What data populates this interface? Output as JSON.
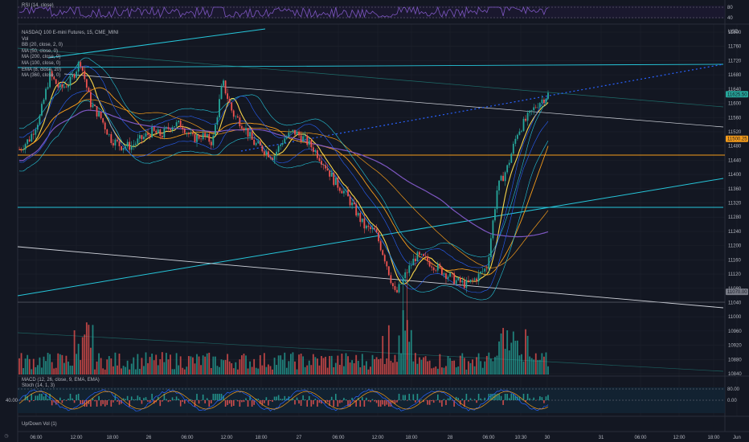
{
  "chart_data": [
    {
      "type": "candlestick",
      "title": "NASDAQ 100 E-mini Futures, 15, CME_MINI",
      "currency": "USD",
      "indicators": [
        "Vol",
        "BB (20, close, 2, 0)",
        "MA (50, close, 0)",
        "MA (200, close, 0)",
        "MA (100, close, 0)",
        "EMA (8, close, 20)",
        "MA (360, close, 0)"
      ],
      "y_ticks": [
        11800,
        11760,
        11720,
        11680,
        11640,
        11600,
        11560,
        11520,
        11480,
        11440,
        11400,
        11360,
        11320,
        11280,
        11240,
        11200,
        11160,
        11120,
        11080,
        11040,
        11000,
        10960,
        10920,
        10880,
        10840
      ],
      "ylim": [
        10840,
        11820
      ],
      "x_ticks": [
        "06:00",
        "12:00",
        "18:00",
        "26",
        "06:00",
        "12:00",
        "18:00",
        "27",
        "06:00",
        "12:00",
        "18:00",
        "28",
        "06:00",
        "10:30",
        "30",
        "31",
        "06:00",
        "12:00",
        "18:00",
        "Jun"
      ],
      "price_tags": [
        {
          "value": "11625.50",
          "color": "#26a69a"
        },
        {
          "value": "11500.25",
          "color": "#f59c1a"
        },
        {
          "value": "11070.00",
          "color": "#787b86"
        }
      ],
      "price_path": [
        11470,
        11500,
        11560,
        11680,
        11640,
        11660,
        11720,
        11600,
        11560,
        11500,
        11480,
        11480,
        11500,
        11520,
        11510,
        11540,
        11540,
        11500,
        11510,
        11490,
        11660,
        11570,
        11540,
        11490,
        11470,
        11450,
        11500,
        11520,
        11500,
        11470,
        11430,
        11380,
        11350,
        11300,
        11250,
        11240,
        11160,
        11060,
        11120,
        11170,
        11160,
        11140,
        11120,
        11100,
        11090,
        11110,
        11140,
        11360,
        11420,
        11520,
        11560,
        11600,
        11625
      ]
    },
    {
      "type": "line",
      "title": "RSI (14, close)",
      "y_ticks": [
        80.0,
        40.0
      ]
    },
    {
      "type": "line",
      "title": "MACD (12, 26, close, 9, EMA, EMA)",
      "indicators": [
        "Stoch (14, 1, 3)"
      ],
      "y_ticks": [
        "80.00",
        "40.00",
        "0.00"
      ]
    },
    {
      "type": "bar",
      "title": "Up/Down Vol (1)"
    }
  ],
  "legend": {
    "title": "NASDAQ 100 E-mini Futures, 15, CME_MINI",
    "items": [
      "Vol",
      "BB (20, close, 2, 0)",
      "MA (50, close, 0)",
      "MA (200, close, 0)",
      "MA (100, close, 0)",
      "EMA (8, close, 20)",
      "MA (360, close, 0)"
    ]
  },
  "panes": {
    "rsi": "RSI (14, close)",
    "macd": "MACD (12, 26, close, 9, EMA, EMA)",
    "stoch": "Stoch (14, 1, 3)",
    "updown": "Up/Down Vol (1)"
  },
  "axis": {
    "currency": "USD"
  },
  "colors": {
    "bg": "#131722",
    "up": "#26a69a",
    "down": "#ef5350",
    "teal": "#26c6da",
    "orange": "#f59c1a",
    "yellow": "#f9d54a",
    "purple": "#7e57c2",
    "blue": "#2962ff",
    "grey": "#b2b5be"
  }
}
